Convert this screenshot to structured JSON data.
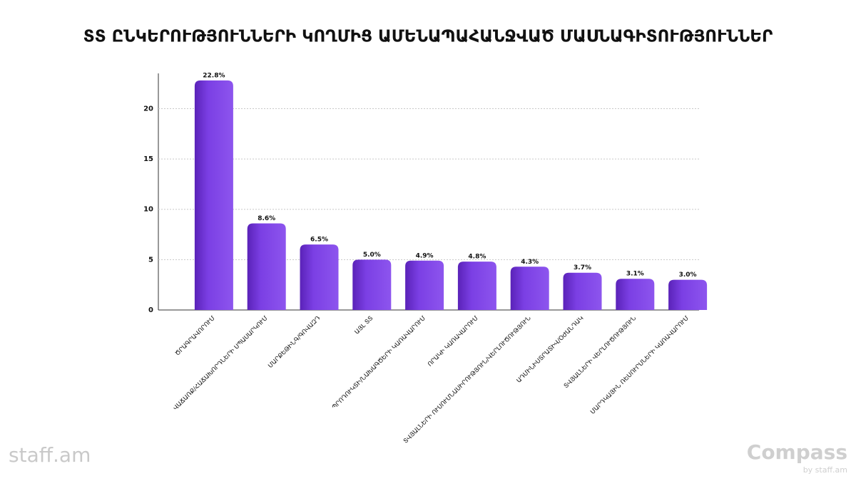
{
  "chart_data": {
    "type": "bar",
    "title": "ՏՏ ԸՆԿԵՐՈՒԹՅՈՒՆՆԵՐԻ ԿՈՂՄԻՑ ԱՄԵՆԱՊԱՀԱՆՋՎԱԾ ՄԱՍՆԱԳԻՏՈՒԹՅՈՒՆՆԵՐ",
    "categories": [
      "ԾՐԱԳՐԱՎՈՐՈՒՄ",
      "ՎԱՃԱՌՔ/ՀԱՃԱԽՈՐԴՆԵՐԻ ՍՊԱՍԱՐԿՈՒՄ",
      "ՄԱՐՔԵԹԻՆԳ/ԳՈՎԱԶԴ",
      "ԱՅԼ ՏՏ",
      "ՊՐՈԴՈՒԿՏԻ/ՆԱԽԱԳԾԵՐԻ ԿԱՌԱՎԱՐՈՒՄ",
      "ՈՐԱԿԻ ԿԱՌԱՎԱՐՈՒՄ",
      "ՏՎՅԱԼՆԵՐԻ ՈՒՍՈՒՄՆԱՍԻՐՈՒԹՅՈՒՆ/ՎԵՐԼՈՒԾՈՒԹՅՈՒՆ",
      "ԱԴՄԻՆԻՍՏՐԱՏԻՎ/ՕԺԱՆԴԱԿ",
      "ՏՎՅԱԼՆԵՐԻ ՎԵՐԼՈՒԾՈՒԹՅՈՒՆ",
      "ՄԱՐԴԿԱՅԻՆ ՌԵՍՈՒՐՍՆԵՐԻ ԿԱՌԱՎԱՐՈՒՄ"
    ],
    "values": [
      22.8,
      8.6,
      6.5,
      5.0,
      4.9,
      4.8,
      4.3,
      3.7,
      3.1,
      3.0
    ],
    "value_labels": [
      "22.8%",
      "8.6%",
      "6.5%",
      "5.0%",
      "4.9%",
      "4.8%",
      "4.3%",
      "3.7%",
      "3.1%",
      "3.0%"
    ],
    "color": "#7b3fe4",
    "ylim": [
      0,
      23.5
    ],
    "yticks": [
      0,
      5,
      10,
      15,
      20
    ],
    "grid": true
  },
  "branding": {
    "left": "staff.am",
    "right": "Compass",
    "right_sub": "by staff.am"
  }
}
